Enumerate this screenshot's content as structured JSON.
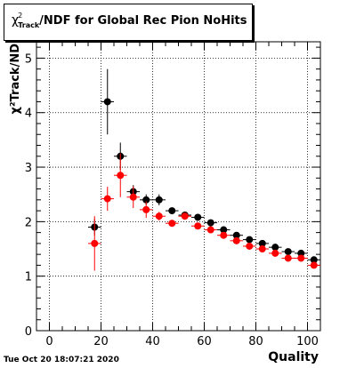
{
  "title": {
    "symbol": "χ",
    "superscript": "2",
    "subscript": "Track",
    "text": "/NDF for Global Rec Pion NoHits"
  },
  "footer": {
    "timestamp": "Tue Oct 20 18:07:21 2020"
  },
  "chart_data": {
    "type": "scatter",
    "xlabel": "Quality",
    "ylabel": "χ²Track/ND",
    "xlim": [
      -5,
      105
    ],
    "ylim": [
      0,
      5.3
    ],
    "x_ticks": [
      0,
      20,
      40,
      60,
      80,
      100
    ],
    "y_ticks": [
      0,
      1,
      2,
      3,
      4,
      5
    ],
    "grid": true,
    "series": [
      {
        "color": "#000000",
        "points": [
          {
            "x": 17.5,
            "y": 1.9,
            "err": 0.15
          },
          {
            "x": 22.5,
            "y": 4.2,
            "err": 0.6
          },
          {
            "x": 27.5,
            "y": 3.2,
            "err": 0.25
          },
          {
            "x": 32.5,
            "y": 2.55,
            "err": 0.12
          },
          {
            "x": 37.5,
            "y": 2.4,
            "err": 0.1
          },
          {
            "x": 42.5,
            "y": 2.4,
            "err": 0.1
          },
          {
            "x": 47.5,
            "y": 2.2,
            "err": 0.05
          },
          {
            "x": 52.5,
            "y": 2.12,
            "err": 0.05
          },
          {
            "x": 57.5,
            "y": 2.08,
            "err": 0.05
          },
          {
            "x": 62.5,
            "y": 1.98,
            "err": 0.05
          },
          {
            "x": 67.5,
            "y": 1.85,
            "err": 0.05
          },
          {
            "x": 72.5,
            "y": 1.75,
            "err": 0.05
          },
          {
            "x": 77.5,
            "y": 1.67,
            "err": 0.05
          },
          {
            "x": 82.5,
            "y": 1.6,
            "err": 0.05
          },
          {
            "x": 87.5,
            "y": 1.53,
            "err": 0.05
          },
          {
            "x": 92.5,
            "y": 1.45,
            "err": 0.05
          },
          {
            "x": 97.5,
            "y": 1.42,
            "err": 0.05
          },
          {
            "x": 102.5,
            "y": 1.3,
            "err": 0.05
          }
        ]
      },
      {
        "color": "#ff0000",
        "points": [
          {
            "x": 17.5,
            "y": 1.6,
            "err": 0.5
          },
          {
            "x": 22.5,
            "y": 2.42,
            "err": 0.22
          },
          {
            "x": 27.5,
            "y": 2.85,
            "err": 0.4
          },
          {
            "x": 32.5,
            "y": 2.45,
            "err": 0.2
          },
          {
            "x": 37.5,
            "y": 2.22,
            "err": 0.15
          },
          {
            "x": 42.5,
            "y": 2.1,
            "err": 0.08
          },
          {
            "x": 47.5,
            "y": 1.97,
            "err": 0.05
          },
          {
            "x": 52.5,
            "y": 2.1,
            "err": 0.05
          },
          {
            "x": 57.5,
            "y": 1.92,
            "err": 0.05
          },
          {
            "x": 62.5,
            "y": 1.85,
            "err": 0.05
          },
          {
            "x": 67.5,
            "y": 1.75,
            "err": 0.05
          },
          {
            "x": 72.5,
            "y": 1.65,
            "err": 0.05
          },
          {
            "x": 77.5,
            "y": 1.55,
            "err": 0.05
          },
          {
            "x": 82.5,
            "y": 1.5,
            "err": 0.05
          },
          {
            "x": 87.5,
            "y": 1.42,
            "err": 0.05
          },
          {
            "x": 92.5,
            "y": 1.33,
            "err": 0.05
          },
          {
            "x": 97.5,
            "y": 1.33,
            "err": 0.05
          },
          {
            "x": 102.5,
            "y": 1.2,
            "err": 0.05
          }
        ]
      }
    ]
  }
}
